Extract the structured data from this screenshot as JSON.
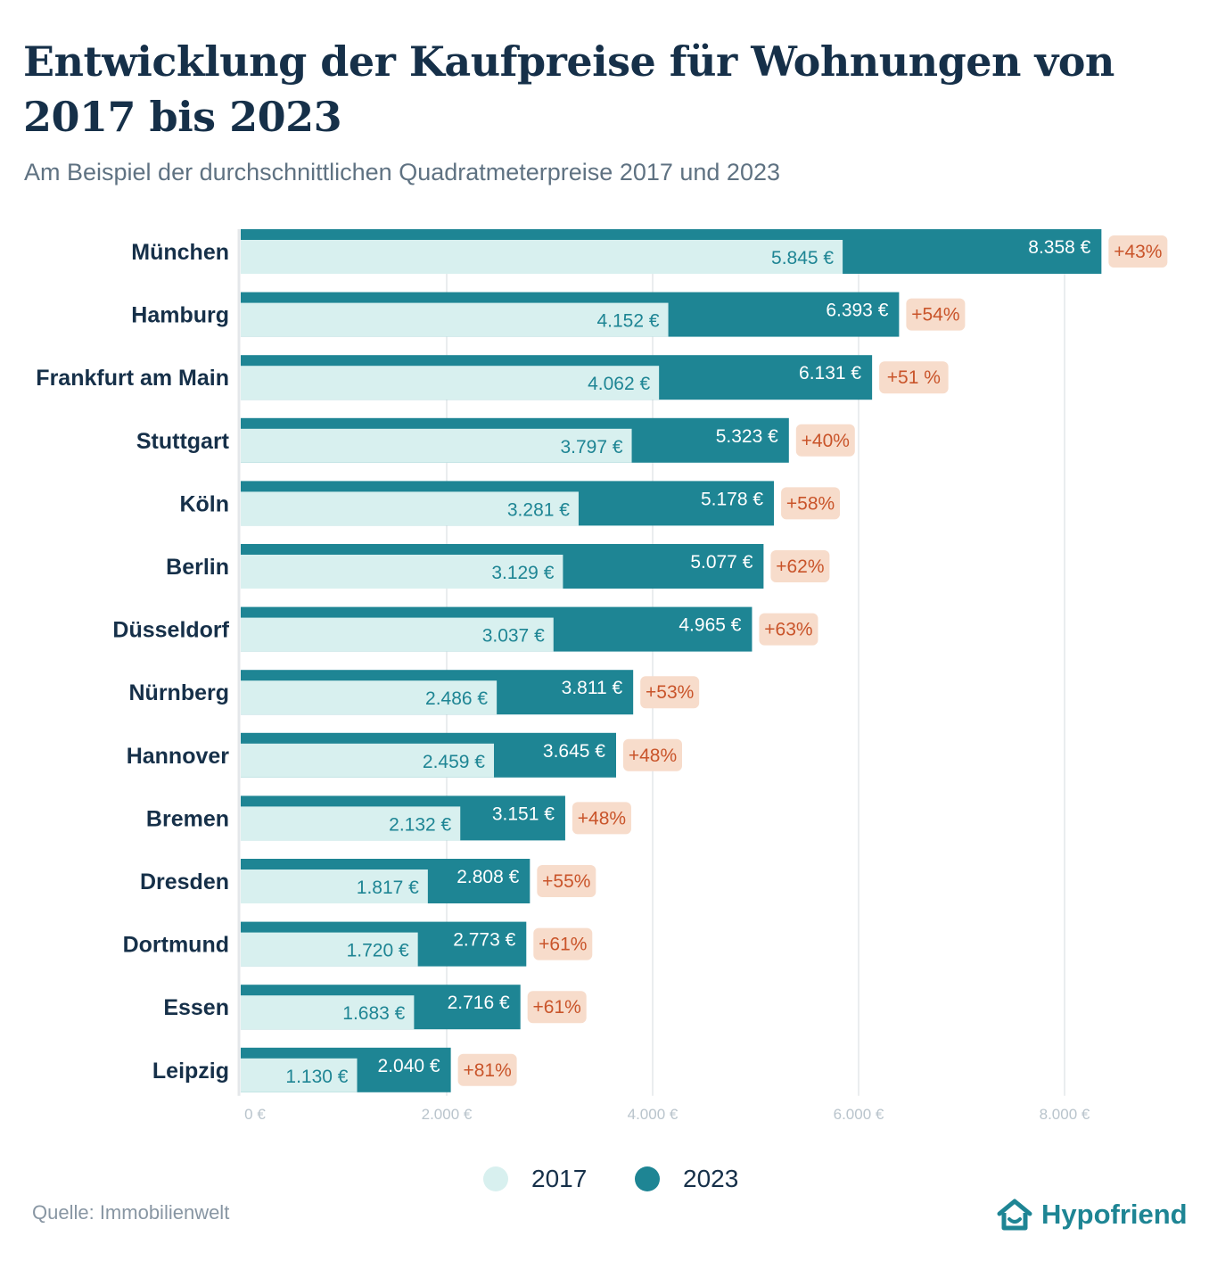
{
  "title": "Entwicklung der Kaufpreise für Wohnungen von 2017 bis 2023",
  "subtitle": "Am Beispiel der durchschnittlichen Quadratmeterpreise 2017 und 2023",
  "source": "Quelle: Immobilienwelt",
  "brand": "Hypofriend",
  "colors": {
    "series_2017": "#d8f0ef",
    "series_2023": "#1e8594",
    "label_2017": "#1e8594",
    "label_2023": "#ffffff",
    "badge_bg": "#f7dccb",
    "badge_text": "#c9542a",
    "axis_text": "#b9c4cc",
    "grid": "#e4e7ea",
    "category_text": "#163049"
  },
  "chart_data": {
    "type": "bar",
    "orientation": "horizontal",
    "categories": [
      "München",
      "Hamburg",
      "Frankfurt am Main",
      "Stuttgart",
      "Köln",
      "Berlin",
      "Düsseldorf",
      "Nürnberg",
      "Hannover",
      "Bremen",
      "Dresden",
      "Dortmund",
      "Essen",
      "Leipzig"
    ],
    "series": [
      {
        "name": "2017",
        "values": [
          5845,
          4152,
          4062,
          3797,
          3281,
          3129,
          3037,
          2486,
          2459,
          2132,
          1817,
          1720,
          1683,
          1130
        ],
        "labels": [
          "5.845 €",
          "4.152 €",
          "4.062 €",
          "3.797 €",
          "3.281 €",
          "3.129 €",
          "3.037 €",
          "2.486 €",
          "2.459 €",
          "2.132 €",
          "1.817 €",
          "1.720 €",
          "1.683 €",
          "1.130 €"
        ]
      },
      {
        "name": "2023",
        "values": [
          8358,
          6393,
          6131,
          5323,
          5178,
          5077,
          4965,
          3811,
          3645,
          3151,
          2808,
          2773,
          2716,
          2040
        ],
        "labels": [
          "8.358 €",
          "6.393 €",
          "6.131 €",
          "5.323 €",
          "5.178 €",
          "5.077 €",
          "4.965 €",
          "3.811 €",
          "3.645 €",
          "3.151 €",
          "2.808 €",
          "2.773 €",
          "2.716 €",
          "2.040 €"
        ]
      }
    ],
    "change_labels": [
      "+43%",
      "+54%",
      "+51 %",
      "+40%",
      "+58%",
      "+62%",
      "+63%",
      "+53%",
      "+48%",
      "+48%",
      "+55%",
      "+61%",
      "+61%",
      "+81%"
    ],
    "x_ticks": [
      0,
      2000,
      4000,
      6000,
      8000
    ],
    "x_tick_labels": [
      "0 €",
      "2.000 €",
      "4.000 €",
      "6.000 €",
      "8.000 €"
    ],
    "xlim": [
      0,
      9000
    ],
    "grid": true,
    "legend_position": "bottom-center",
    "xlabel": "",
    "ylabel": ""
  }
}
